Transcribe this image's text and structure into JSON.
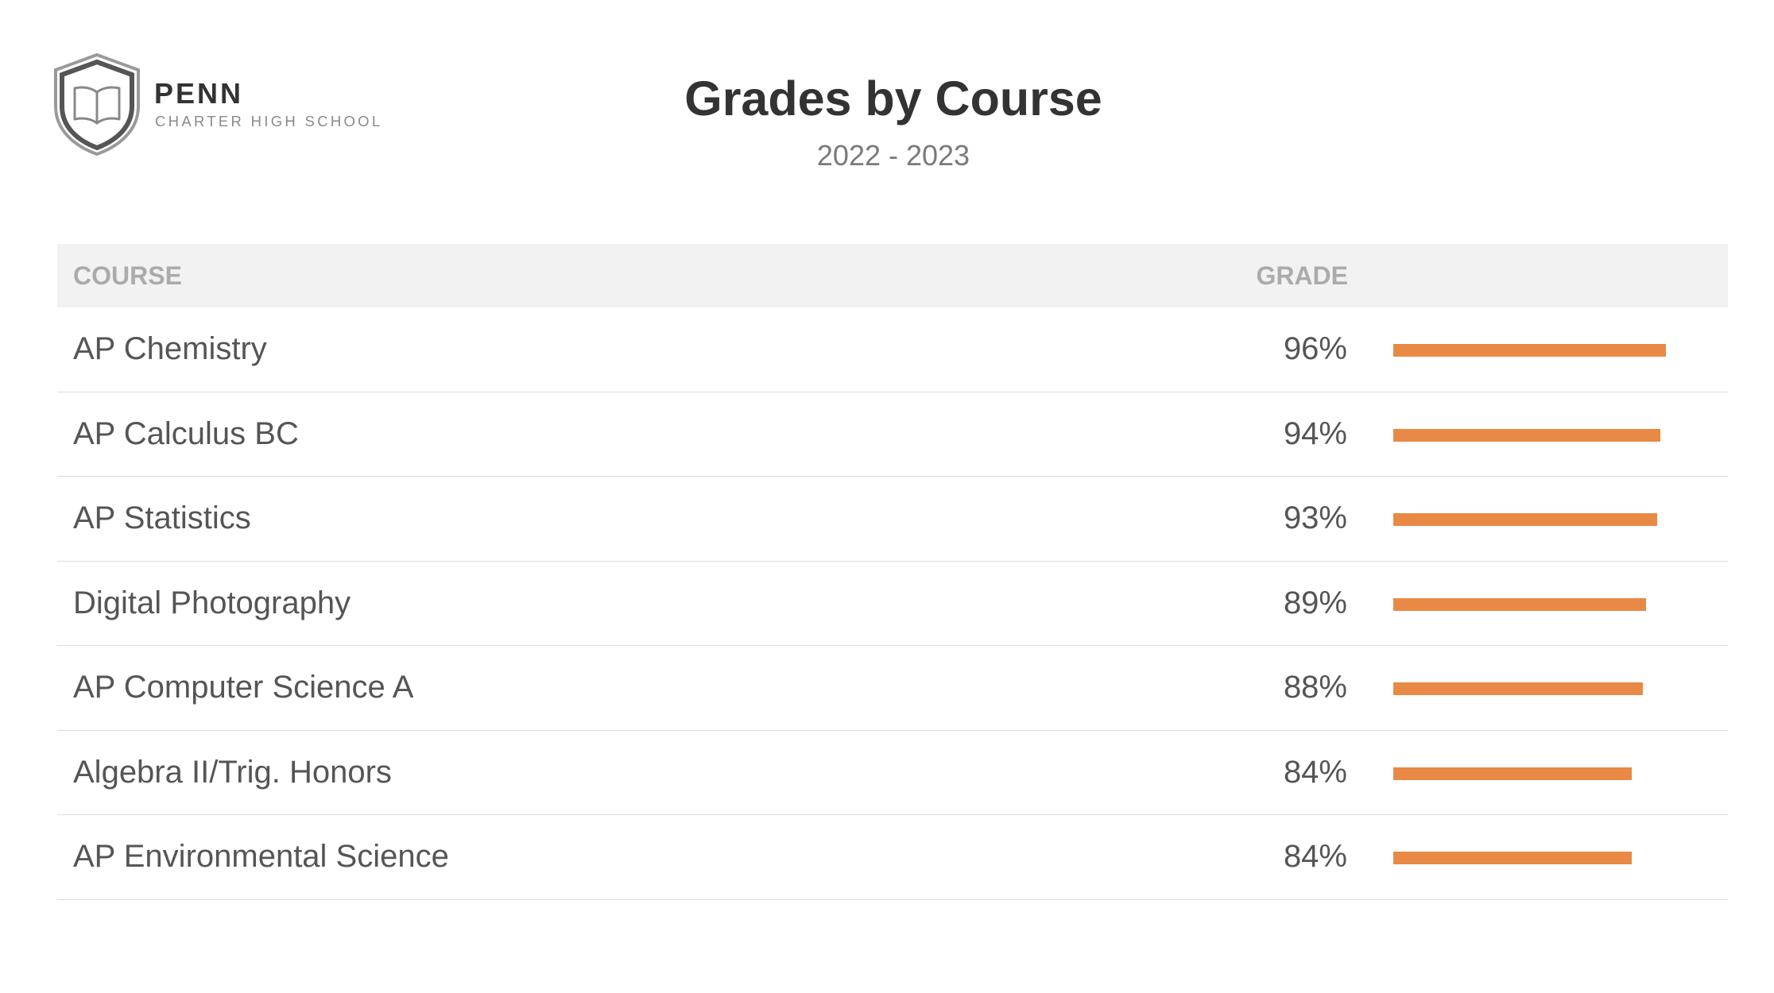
{
  "header": {
    "brand_name": "PENN",
    "brand_subtitle": "CHARTER HIGH SCHOOL",
    "logo_icon": "shield-book-icon",
    "title": "Grades by Course",
    "subtitle": "2022 - 2023"
  },
  "table": {
    "columns": [
      "COURSE",
      "GRADE"
    ],
    "bar_color": "#e88a45",
    "rows": [
      {
        "course": "AP Chemistry",
        "grade_label": "96%",
        "grade": 96
      },
      {
        "course": "AP Calculus BC",
        "grade_label": "94%",
        "grade": 94
      },
      {
        "course": "AP Statistics",
        "grade_label": "93%",
        "grade": 93
      },
      {
        "course": "Digital Photography",
        "grade_label": "89%",
        "grade": 89
      },
      {
        "course": "AP Computer Science A",
        "grade_label": "88%",
        "grade": 88
      },
      {
        "course": "Algebra II/Trig. Honors",
        "grade_label": "84%",
        "grade": 84
      },
      {
        "course": "AP Environmental Science",
        "grade_label": "84%",
        "grade": 84
      }
    ]
  }
}
